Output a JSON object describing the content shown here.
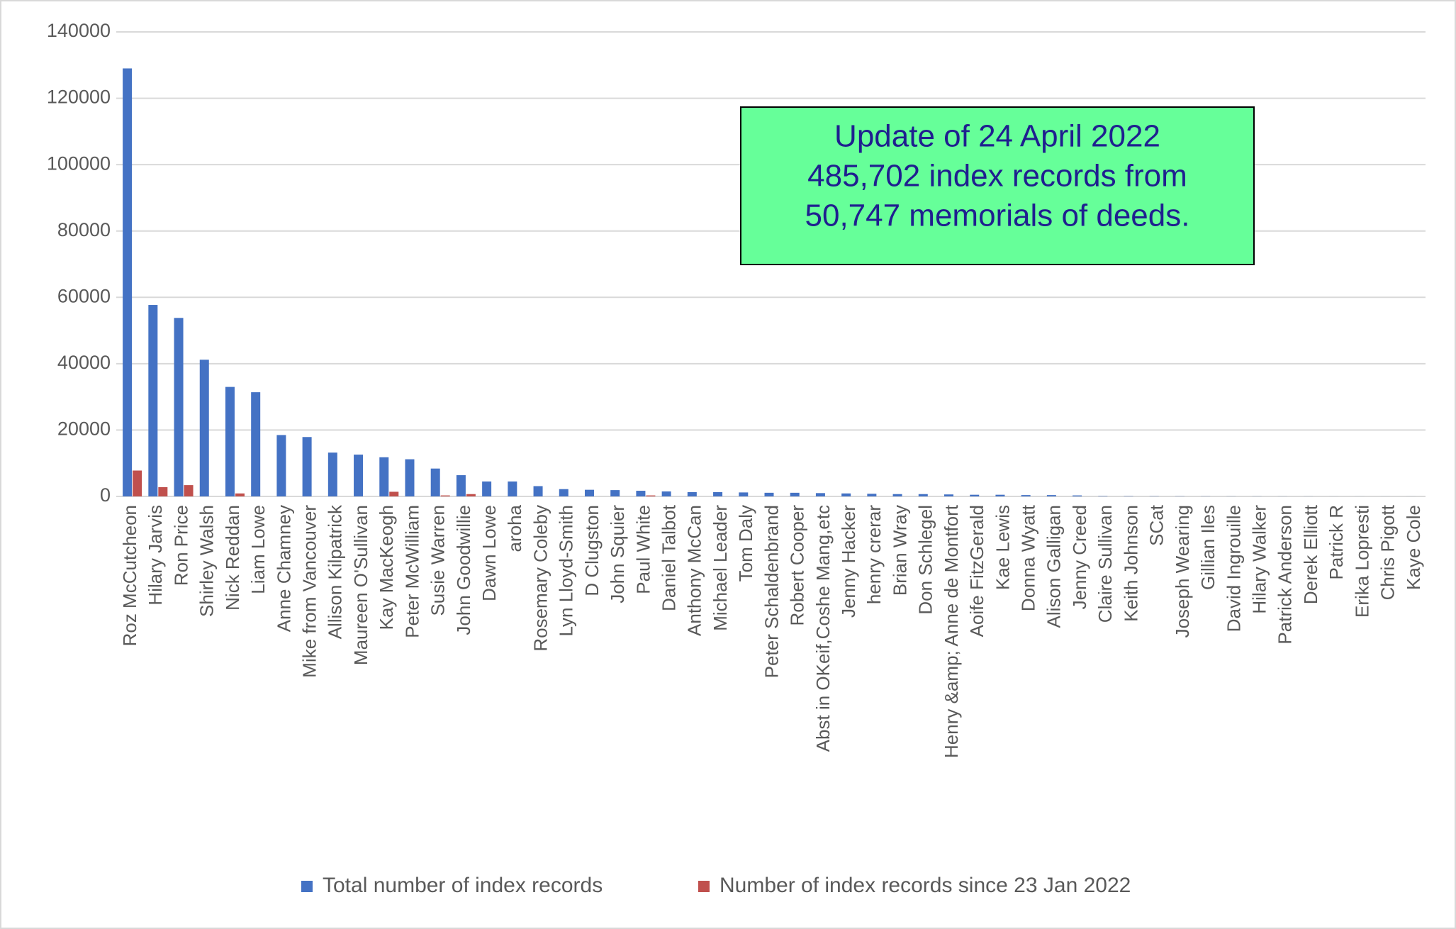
{
  "chart_data": {
    "type": "bar",
    "categories": [
      "Roz McCutcheon",
      "Hilary Jarvis",
      "Ron Price",
      "Shirley Walsh",
      "Nick Reddan",
      "Liam Lowe",
      "Anne Chamney",
      "Mike from Vancouver",
      "Allison Kilpatrick",
      "Maureen O'Sullivan",
      "Kay MacKeogh",
      "Peter McWilliam",
      "Susie Warren",
      "John Goodwillie",
      "Dawn Lowe",
      "aroha",
      "Rosemary Coleby",
      "Lyn Lloyd-Smith",
      "D Clugston",
      "John Squier",
      "Paul White",
      "Daniel Talbot",
      "Anthony McCan",
      "Michael Leader",
      "Tom Daly",
      "Peter Schaldenbrand",
      "Robert Cooper",
      "Abst in OKeif,Coshe Mang,etc",
      "Jenny Hacker",
      "henry crerar",
      "Brian Wray",
      "Don Schlegel",
      "Henry &amp; Anne de Montfort",
      "Aoife FitzGerald",
      "Kae Lewis",
      "Donna Wyatt",
      "Alison Galligan",
      "Jenny Creed",
      "Claire Sullivan",
      "Keith Johnson",
      "SCat",
      "Joseph Wearing",
      "Gillian Iles",
      "David Ingrouille",
      "Hilary Walker",
      "Patrick Anderson",
      "Derek Elliott",
      "Patrick R",
      "Erika Lopresti",
      "Chris Pigott",
      "Kaye Cole"
    ],
    "series": [
      {
        "name": "Total number of index records",
        "color": "#4472c4",
        "values": [
          129000,
          57700,
          53800,
          41200,
          33000,
          31400,
          18500,
          17900,
          13200,
          12600,
          11800,
          11200,
          8400,
          6400,
          4500,
          4500,
          3100,
          2200,
          2000,
          1900,
          1700,
          1500,
          1300,
          1300,
          1200,
          1100,
          1100,
          1000,
          900,
          800,
          700,
          700,
          600,
          500,
          500,
          400,
          400,
          300,
          100,
          80,
          60,
          50,
          40,
          30,
          30,
          20,
          20,
          10,
          10,
          10,
          10
        ]
      },
      {
        "name": "Number of index records since 23 Jan 2022",
        "color": "#c0504d",
        "values": [
          7800,
          2800,
          3400,
          0,
          900,
          0,
          0,
          0,
          0,
          0,
          1400,
          0,
          300,
          700,
          0,
          0,
          0,
          0,
          0,
          0,
          300,
          0,
          0,
          0,
          0,
          0,
          0,
          0,
          0,
          0,
          0,
          0,
          0,
          0,
          0,
          0,
          0,
          0,
          0,
          0,
          0,
          0,
          0,
          0,
          0,
          0,
          0,
          0,
          0,
          0,
          0
        ]
      }
    ],
    "ylim": [
      0,
      140000
    ],
    "yticks": [
      0,
      20000,
      40000,
      60000,
      80000,
      100000,
      120000,
      140000
    ],
    "grid": true,
    "legend": "bottom",
    "annotation": {
      "lines": [
        "Update of 24 April 2022",
        "485,702 index records from",
        "50,747 memorials of deeds."
      ],
      "background": "#66ff99",
      "color": "#1f1f8f"
    }
  }
}
